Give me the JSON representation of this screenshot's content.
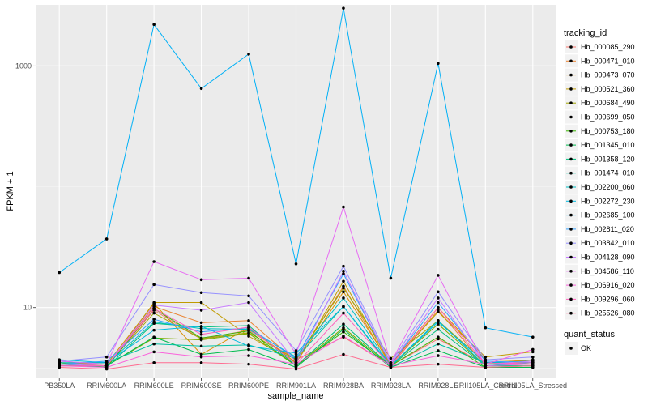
{
  "chart_data": {
    "type": "line",
    "xlabel": "sample_name",
    "ylabel": "FPKM + 1",
    "y_scale": "log10",
    "ylim": [
      2.6,
      3200
    ],
    "y_ticks": [
      10,
      1000
    ],
    "y_tick_labels": [
      "10",
      "1000"
    ],
    "grid": true,
    "legend_placement": "right",
    "legend_title": "tracking_id",
    "point_legend_title": "quant_status",
    "point_legend_label": "OK",
    "categories": [
      "PB350LA",
      "RRIM600LA",
      "RRIM600LE",
      "RRIM600SE",
      "RRIM600PE",
      "RRIM901LA",
      "RRIM928BA",
      "RRIM928LA",
      "RRIM928LE",
      "RRII105LA_Control",
      "RRII105LA_Stressed"
    ],
    "series": [
      {
        "name": "Hb_000085_290",
        "color": "#F8766D",
        "values": [
          3.5,
          3.3,
          9.5,
          5.5,
          6.5,
          3.7,
          5.7,
          3.3,
          5.5,
          3.4,
          3.7
        ]
      },
      {
        "name": "Hb_000471_010",
        "color": "#EA8331",
        "values": [
          3.4,
          3.3,
          10.2,
          7.5,
          7.8,
          3.6,
          15.0,
          3.3,
          9.5,
          3.3,
          3.4
        ]
      },
      {
        "name": "Hb_000473_070",
        "color": "#D89000",
        "values": [
          3.5,
          3.4,
          10.8,
          4.1,
          6.8,
          3.5,
          13.5,
          3.4,
          10.0,
          3.7,
          3.6
        ]
      },
      {
        "name": "Hb_000521_360",
        "color": "#C09B00",
        "values": [
          3.5,
          3.2,
          11.0,
          11.0,
          5.8,
          3.5,
          16.5,
          3.4,
          9.2,
          3.9,
          4.3
        ]
      },
      {
        "name": "Hb_000684_490",
        "color": "#A3A500",
        "values": [
          3.4,
          3.3,
          9.0,
          5.5,
          6.2,
          3.7,
          14.5,
          3.8,
          7.8,
          3.5,
          3.5
        ]
      },
      {
        "name": "Hb_000699_050",
        "color": "#7CAE00",
        "values": [
          3.4,
          3.3,
          5.6,
          5.4,
          6.1,
          3.3,
          6.8,
          3.3,
          7.3,
          3.3,
          3.5
        ]
      },
      {
        "name": "Hb_000753_180",
        "color": "#39B600",
        "values": [
          3.5,
          3.2,
          9.8,
          5.6,
          6.4,
          3.3,
          6.3,
          3.3,
          5.7,
          3.2,
          3.3
        ]
      },
      {
        "name": "Hb_001345_010",
        "color": "#00BB4E",
        "values": [
          3.3,
          3.3,
          5.7,
          4.1,
          4.5,
          3.2,
          6.6,
          3.2,
          4.4,
          3.2,
          3.2
        ]
      },
      {
        "name": "Hb_001358_120",
        "color": "#00BF7D",
        "values": [
          3.4,
          3.2,
          7.4,
          6.9,
          7.1,
          3.3,
          7.3,
          3.3,
          6.6,
          3.3,
          3.3
        ]
      },
      {
        "name": "Hb_001474_010",
        "color": "#00C1A3",
        "values": [
          3.5,
          3.5,
          5.0,
          4.8,
          4.9,
          3.8,
          10.2,
          3.2,
          5.0,
          3.5,
          3.6
        ]
      },
      {
        "name": "Hb_002200_060",
        "color": "#00BFC4",
        "values": [
          3.6,
          3.4,
          7.6,
          6.7,
          6.6,
          3.9,
          12.0,
          3.3,
          7.8,
          3.3,
          3.5
        ]
      },
      {
        "name": "Hb_002272_230",
        "color": "#00BAE0",
        "values": [
          3.7,
          3.5,
          6.5,
          7.0,
          4.8,
          4.2,
          10.2,
          3.3,
          7.6,
          3.5,
          3.6
        ]
      },
      {
        "name": "Hb_002685_100",
        "color": "#00B0F6",
        "values": [
          19.5,
          37.0,
          2200,
          650,
          1250,
          23.0,
          3000,
          17.5,
          1050,
          6.8,
          5.7
        ]
      },
      {
        "name": "Hb_002811_020",
        "color": "#35A2FF",
        "values": [
          3.4,
          3.6,
          8.0,
          6.3,
          6.8,
          3.8,
          19.0,
          3.4,
          11.0,
          3.6,
          3.5
        ]
      },
      {
        "name": "Hb_003842_010",
        "color": "#9590FF",
        "values": [
          3.6,
          3.9,
          15.5,
          13.3,
          12.5,
          4.4,
          22.0,
          3.5,
          13.5,
          3.7,
          3.9
        ]
      },
      {
        "name": "Hb_004128_090",
        "color": "#C77CFF",
        "values": [
          3.4,
          3.3,
          10.5,
          9.5,
          11.0,
          3.5,
          20.0,
          3.4,
          12.0,
          3.4,
          3.6
        ]
      },
      {
        "name": "Hb_004586_110",
        "color": "#E76BF3",
        "values": [
          3.6,
          3.4,
          24.0,
          17.0,
          17.5,
          4.1,
          68.0,
          3.5,
          18.5,
          3.3,
          3.4
        ]
      },
      {
        "name": "Hb_006916_020",
        "color": "#FA62DB",
        "values": [
          3.3,
          3.2,
          4.3,
          3.9,
          4.0,
          3.4,
          5.8,
          3.3,
          4.0,
          3.4,
          4.5
        ]
      },
      {
        "name": "Hb_009296_060",
        "color": "#FF62BC",
        "values": [
          3.3,
          3.3,
          9.8,
          6.0,
          6.9,
          3.4,
          9.0,
          3.3,
          10.0,
          3.4,
          3.5
        ]
      },
      {
        "name": "Hb_025526_080",
        "color": "#FF6C91",
        "values": [
          3.2,
          3.1,
          3.5,
          3.5,
          3.4,
          3.1,
          4.1,
          3.2,
          3.4,
          3.2,
          3.3
        ]
      }
    ]
  }
}
